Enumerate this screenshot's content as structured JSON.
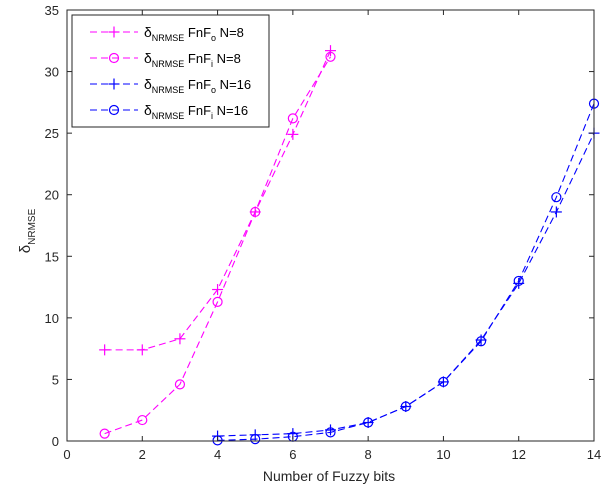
{
  "chart_data": {
    "type": "line",
    "xlabel": "Number of Fuzzy bits",
    "ylabel": {
      "main": "δ",
      "sub": "NRMSE"
    },
    "xlim": [
      0,
      14
    ],
    "ylim": [
      0,
      35
    ],
    "xticks": [
      0,
      2,
      4,
      6,
      8,
      10,
      12,
      14
    ],
    "yticks": [
      0,
      5,
      10,
      15,
      20,
      25,
      30,
      35
    ],
    "grid": false,
    "legend_position": "top-left",
    "series": [
      {
        "name": {
          "main": "δ",
          "sub": "NRMSE",
          "mid": " FnF",
          "sub2": "o",
          "tail": " N=8"
        },
        "color": "#ff00ff",
        "marker": "plus",
        "x": [
          1,
          2,
          3,
          4,
          5,
          6,
          7
        ],
        "y": [
          7.4,
          7.4,
          8.3,
          12.3,
          18.6,
          24.9,
          31.7
        ]
      },
      {
        "name": {
          "main": "δ",
          "sub": "NRMSE",
          "mid": " FnF",
          "sub2": "i",
          "tail": " N=8"
        },
        "color": "#ff00ff",
        "marker": "circle",
        "x": [
          1,
          2,
          3,
          4,
          5,
          6,
          7
        ],
        "y": [
          0.6,
          1.7,
          4.6,
          11.3,
          18.6,
          26.2,
          31.2
        ]
      },
      {
        "name": {
          "main": "δ",
          "sub": "NRMSE",
          "mid": " FnF",
          "sub2": "o",
          "tail": " N=16"
        },
        "color": "#0000ff",
        "marker": "plus",
        "x": [
          4,
          5,
          6,
          7,
          8,
          9,
          10,
          11,
          12,
          13,
          14
        ],
        "y": [
          0.4,
          0.5,
          0.6,
          0.9,
          1.5,
          2.8,
          4.8,
          8.2,
          12.8,
          18.6,
          25.0
        ]
      },
      {
        "name": {
          "main": "δ",
          "sub": "NRMSE",
          "mid": " FnF",
          "sub2": "i",
          "tail": " N=16"
        },
        "color": "#0000ff",
        "marker": "circle",
        "x": [
          4,
          5,
          6,
          7,
          8,
          9,
          10,
          11,
          12,
          13,
          14
        ],
        "y": [
          0.05,
          0.15,
          0.35,
          0.7,
          1.5,
          2.8,
          4.8,
          8.1,
          13.0,
          19.8,
          27.4
        ]
      }
    ]
  }
}
